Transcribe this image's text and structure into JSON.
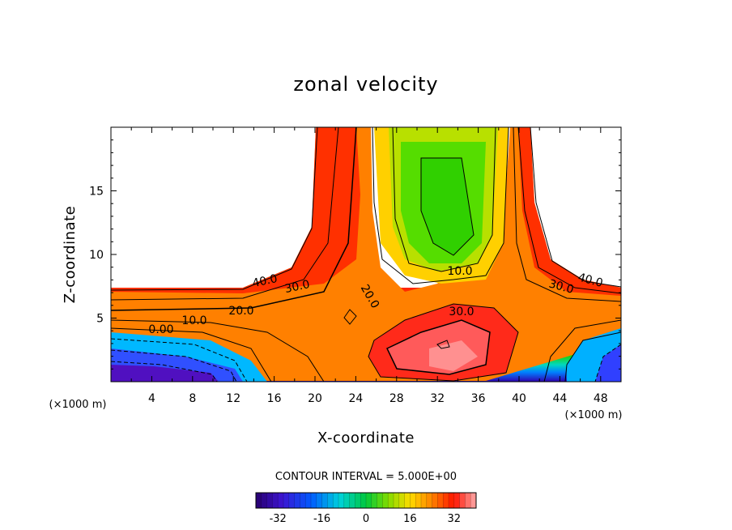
{
  "chart_data": {
    "type": "heatmap",
    "title": "zonal velocity",
    "xlabel": "X-coordinate",
    "ylabel": "Z-coordinate",
    "x_unit": "(×1000 m)",
    "y_unit": "(×1000 m)",
    "xlim": [
      0,
      50
    ],
    "ylim": [
      0,
      20
    ],
    "x_ticks": [
      "4",
      "8",
      "12",
      "16",
      "20",
      "24",
      "28",
      "32",
      "36",
      "40",
      "44",
      "48"
    ],
    "y_ticks": [
      "5",
      "10",
      "15"
    ],
    "contour_interval_text": "CONTOUR INTERVAL = 5.000E+00",
    "contour_labels": [
      "40.0",
      "30.0",
      "20.0",
      "10.0",
      "0.00",
      "20.0",
      "10.0",
      "30.0",
      "30.0",
      "40.0"
    ],
    "colorbar": {
      "range": [
        -40,
        40
      ],
      "tick_labels": [
        "-32",
        "-16",
        "0",
        "16",
        "32"
      ],
      "tick_values": [
        -32,
        -16,
        0,
        16,
        32
      ]
    }
  }
}
